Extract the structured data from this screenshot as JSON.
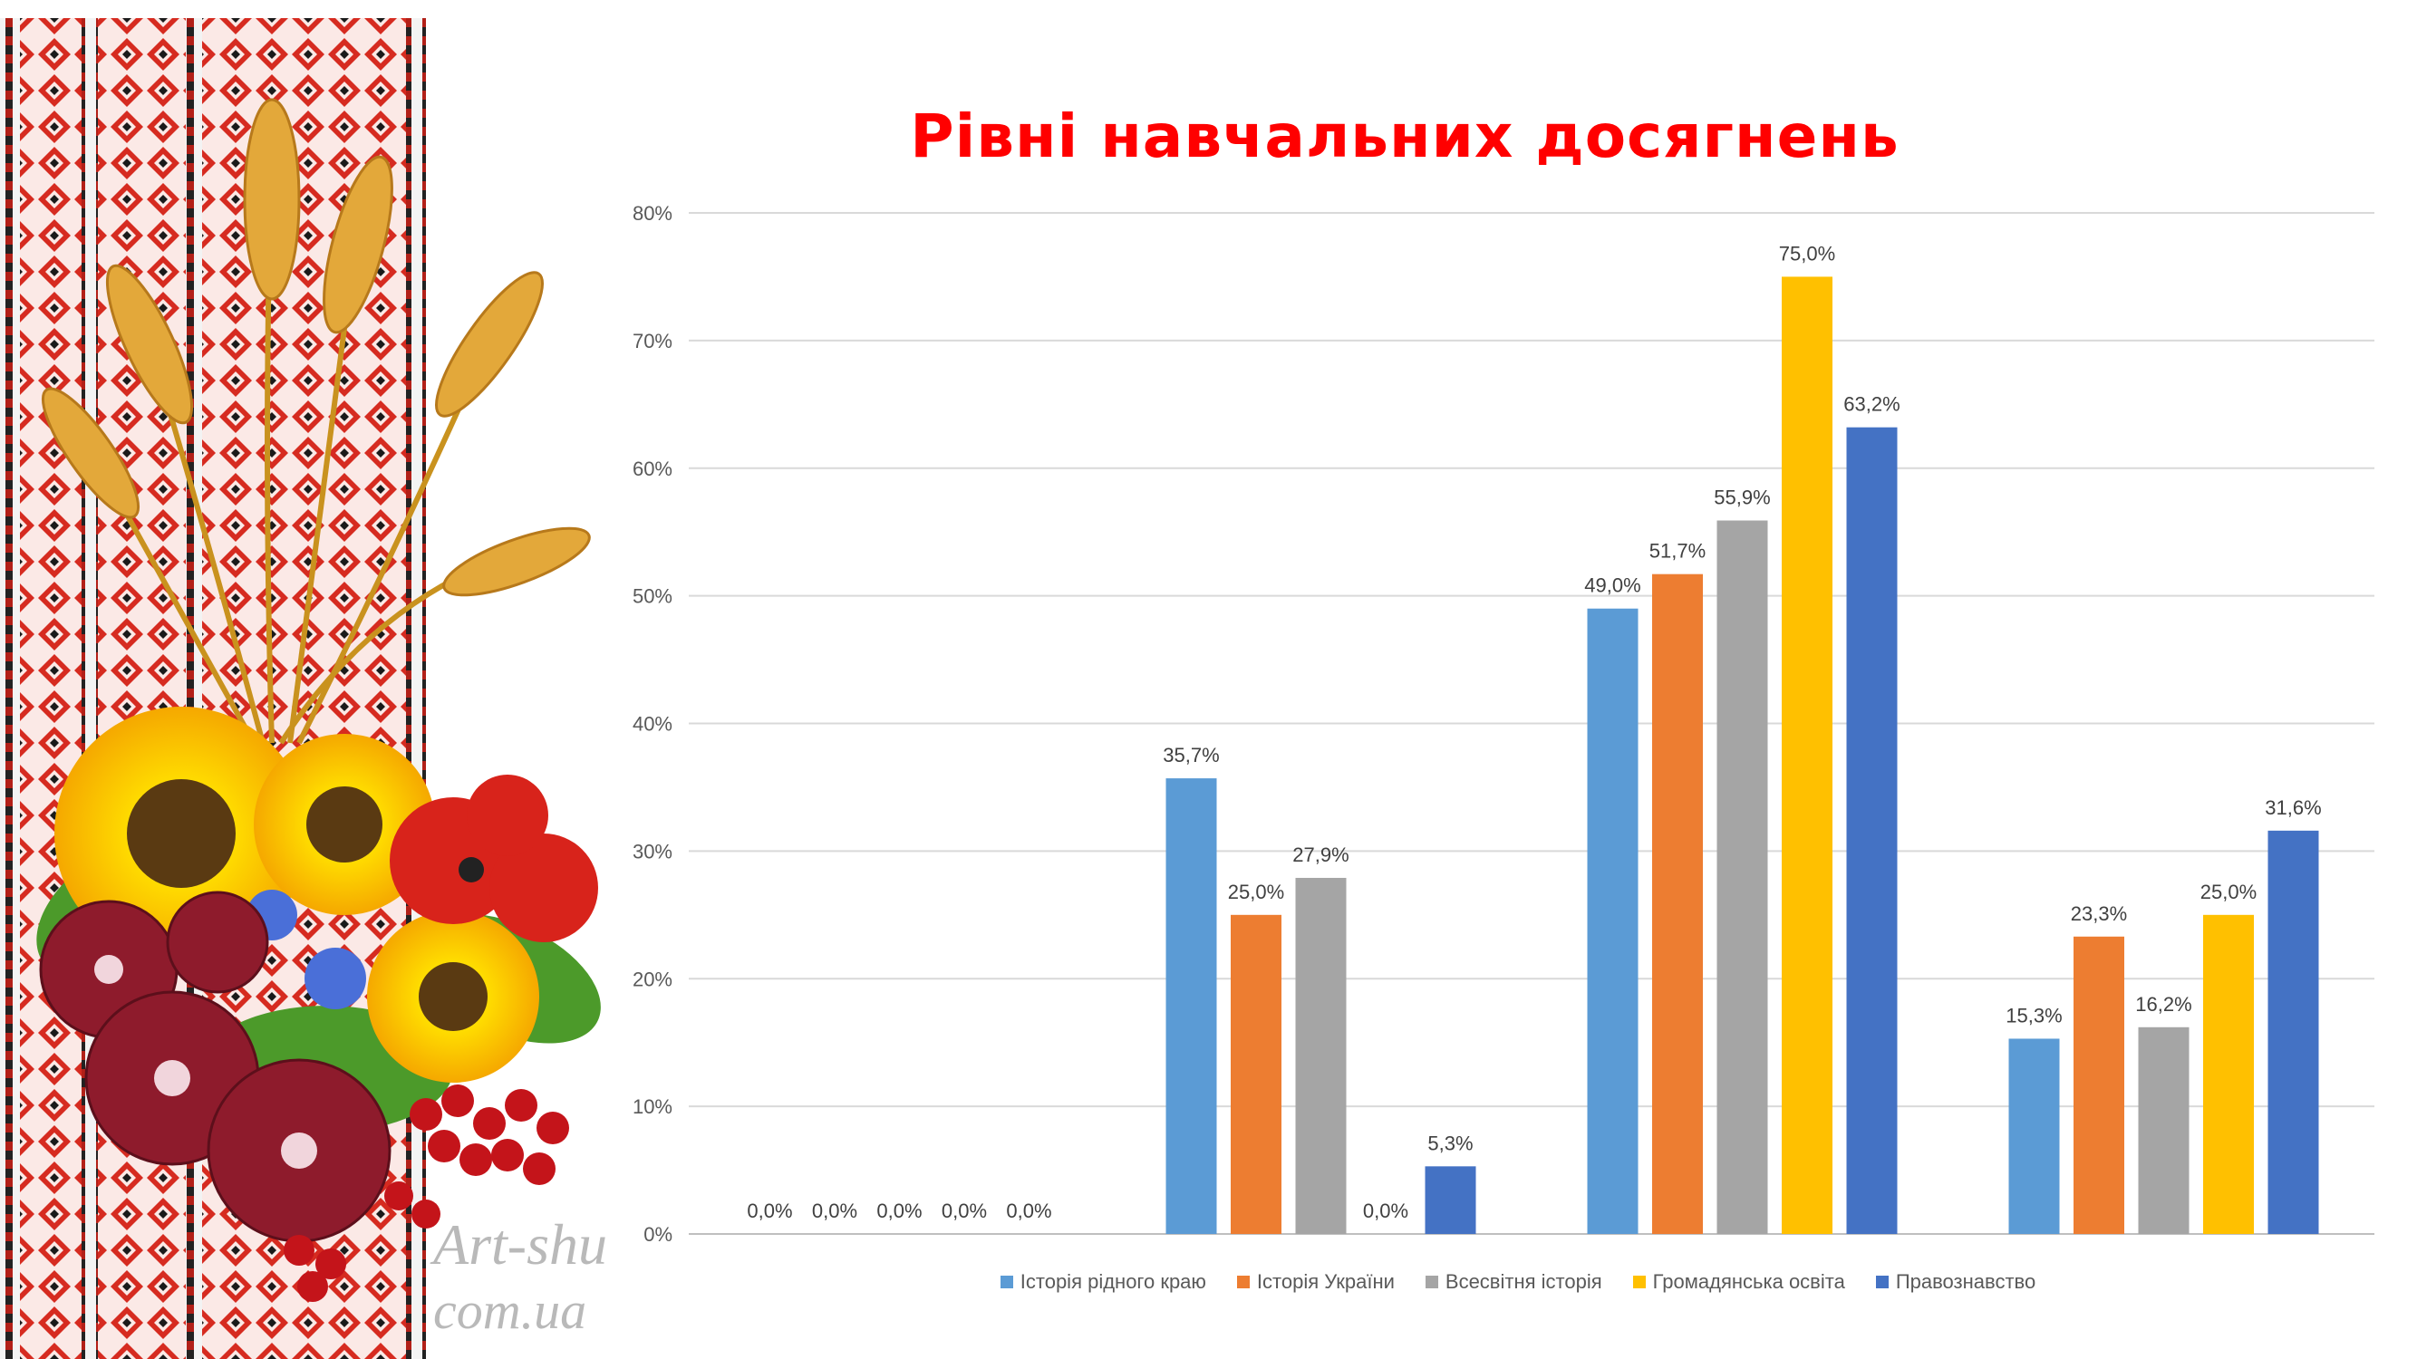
{
  "decor": {
    "watermark_line1": "Art-shu",
    "watermark_line2": "com.ua"
  },
  "chart_data": {
    "type": "bar",
    "title": "Рівні навчальних досягнень",
    "categories": [
      "",
      "",
      "",
      ""
    ],
    "series": [
      {
        "name": "Історія рідного краю",
        "color": "#5b9bd5",
        "values": [
          0.0,
          35.7,
          49.0,
          15.3
        ],
        "labels": [
          "0,0%",
          "35,7%",
          "49,0%",
          "15,3%"
        ]
      },
      {
        "name": "Історія України",
        "color": "#ed7d31",
        "values": [
          0.0,
          25.0,
          51.7,
          23.3
        ],
        "labels": [
          "0,0%",
          "25,0%",
          "51,7%",
          "23,3%"
        ]
      },
      {
        "name": "Всесвітня історія",
        "color": "#a5a5a5",
        "values": [
          0.0,
          27.9,
          55.9,
          16.2
        ],
        "labels": [
          "0,0%",
          "27,9%",
          "55,9%",
          "16,2%"
        ]
      },
      {
        "name": "Громадянська освіта",
        "color": "#ffc000",
        "values": [
          0.0,
          0.0,
          75.0,
          25.0
        ],
        "labels": [
          "0,0%",
          "0,0%",
          "75,0%",
          "25,0%"
        ]
      },
      {
        "name": "Правознавство",
        "color": "#4472c4",
        "values": [
          0.0,
          5.3,
          63.2,
          31.6
        ],
        "labels": [
          "0,0%",
          "5,3%",
          "63,2%",
          "31,6%"
        ]
      }
    ],
    "ylim": [
      0,
      80
    ],
    "yticks": [
      "0%",
      "10%",
      "20%",
      "30%",
      "40%",
      "50%",
      "60%",
      "70%",
      "80%"
    ],
    "grid": true,
    "legend_position": "bottom"
  }
}
